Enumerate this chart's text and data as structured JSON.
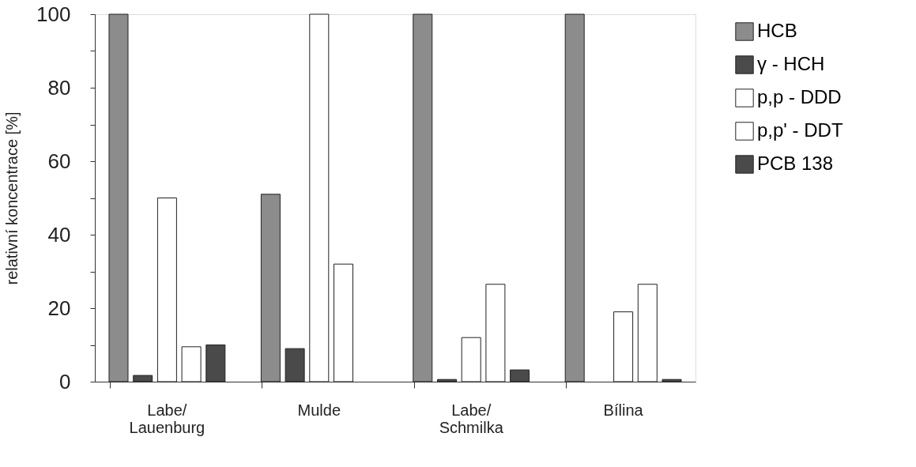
{
  "chart_data": {
    "type": "bar",
    "ylabel": "relativní koncentrace  [%]",
    "categories": [
      "Labe/\nLauenburg",
      "Mulde",
      "Labe/\nSchmilka",
      "Bílina"
    ],
    "series": [
      {
        "name": "HCB",
        "color": "#8c8c8c",
        "values": [
          100,
          51,
          100,
          100
        ]
      },
      {
        "name": "γ - HCH",
        "color": "#4a4a4a",
        "values": [
          1.7,
          9,
          0.6,
          null
        ]
      },
      {
        "name": "p,p - DDD",
        "color": "#ffffff",
        "values": [
          50,
          100,
          12,
          19
        ]
      },
      {
        "name": "p,p' - DDT",
        "color": "#ffffff",
        "values": [
          9.5,
          32,
          26.5,
          26.5
        ]
      },
      {
        "name": "PCB 138",
        "color": "#4a4a4a",
        "values": [
          10,
          null,
          3.2,
          0.6
        ]
      }
    ],
    "ylim": [
      0,
      100
    ],
    "yticks": [
      0,
      {
        "value": 10,
        "label": null
      },
      20,
      {
        "value": 30,
        "label": null
      },
      40,
      {
        "value": 50,
        "label": null
      },
      60,
      {
        "value": 70,
        "label": null
      },
      80,
      {
        "value": 90,
        "label": null
      },
      100
    ],
    "grid": false,
    "legend": "right"
  }
}
